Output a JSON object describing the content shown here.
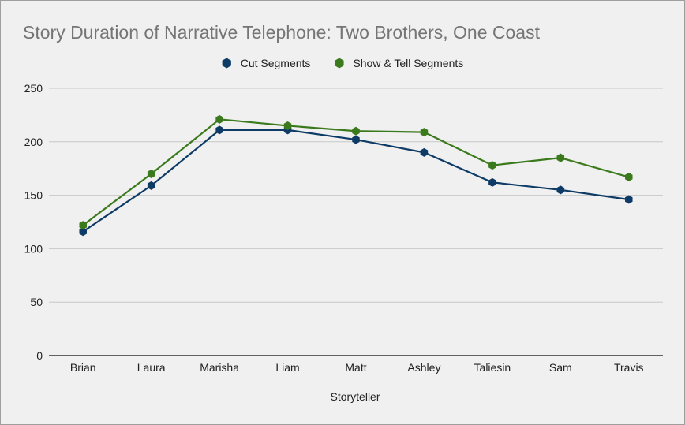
{
  "chart_data": {
    "type": "line",
    "title": "Story Duration of Narrative Telephone: Two Brothers, One Coast",
    "xlabel": "Storyteller",
    "ylabel": "",
    "categories": [
      "Brian",
      "Laura",
      "Marisha",
      "Liam",
      "Matt",
      "Ashley",
      "Taliesin",
      "Sam",
      "Travis"
    ],
    "ylim": [
      0,
      250
    ],
    "yticks": [
      0,
      50,
      100,
      150,
      200,
      250
    ],
    "grid": true,
    "legend_position": "top-center",
    "series": [
      {
        "name": "Cut Segments",
        "color": "#0d3b66",
        "marker": "hexagon",
        "values": [
          116,
          159,
          211,
          211,
          202,
          190,
          162,
          155,
          146
        ]
      },
      {
        "name": "Show & Tell Segments",
        "color": "#3b7a1c",
        "marker": "hexagon",
        "values": [
          122,
          170,
          221,
          215,
          210,
          209,
          178,
          185,
          167
        ]
      }
    ]
  }
}
